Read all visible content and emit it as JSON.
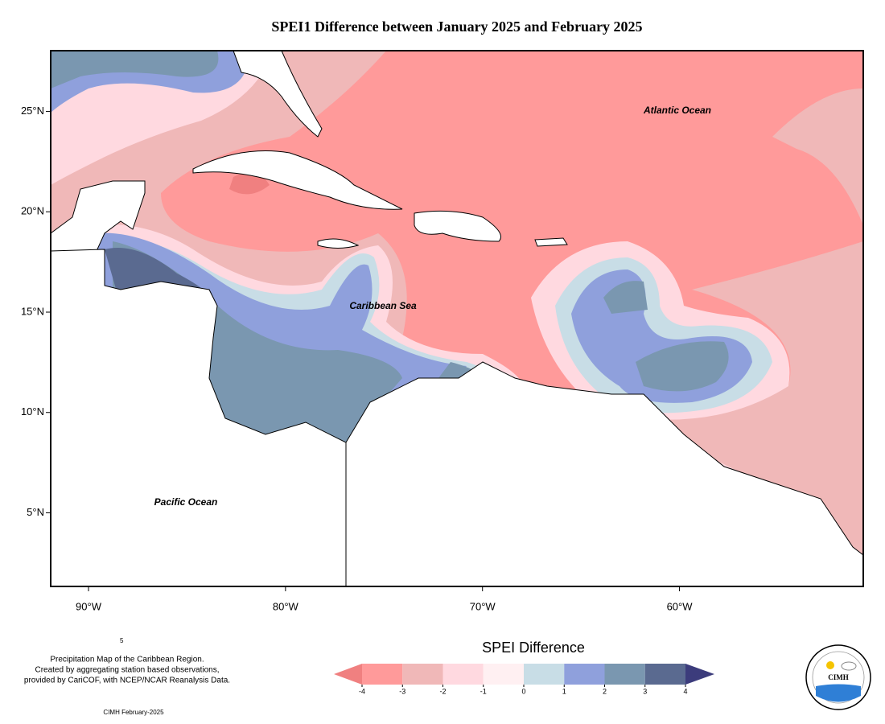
{
  "title": "SPEI1 Difference between January 2025 and February 2025",
  "map": {
    "extent": {
      "lon": [
        -91.92,
        -50.67
      ],
      "lat": [
        1.33,
        28.03
      ]
    },
    "lon_ticks": [
      {
        "value": -90,
        "label": "90°W"
      },
      {
        "value": -80,
        "label": "80°W"
      },
      {
        "value": -70,
        "label": "70°W"
      },
      {
        "value": -60,
        "label": "60°W"
      }
    ],
    "lat_ticks": [
      {
        "value": 25,
        "label": "25°N"
      },
      {
        "value": 20,
        "label": "20°N"
      },
      {
        "value": 15,
        "label": "15°N"
      },
      {
        "value": 10,
        "label": "10°N"
      },
      {
        "value": 5,
        "label": "5°N"
      }
    ],
    "ocean_labels": [
      "Atlantic Ocean",
      "Caribbean Sea",
      "Pacific Ocean"
    ]
  },
  "legend": {
    "title": "SPEI Difference",
    "ticks": [
      -4,
      -3,
      -2,
      -1,
      0,
      1,
      2,
      3,
      4
    ],
    "colors": [
      "#f08080",
      "#ff9a9a",
      "#f0b8b8",
      "#ffd9e0",
      "#fff0f2",
      "#c8dde6",
      "#8fa0dc",
      "#7a97b0",
      "#5a6a90",
      "#3c3c7c"
    ]
  },
  "notes": {
    "marker": "5",
    "lines": [
      "Precipitation Map of the Caribbean Region.",
      "Created by aggregating station based observations,",
      "provided by CariCOF, with NCEP/NCAR Reanalysis Data."
    ],
    "footer": "CIMH February-2025"
  },
  "logo": {
    "name": "CIMH"
  }
}
